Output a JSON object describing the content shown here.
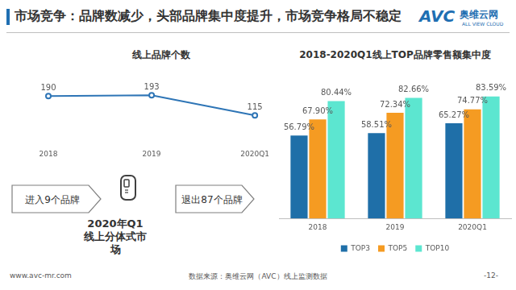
{
  "page": {
    "title": "市场竞争：品牌数减少，头部品牌集中度提升，市场竞争格局不稳定",
    "logo": {
      "mark": "AVC",
      "brand": "奥维云网",
      "tagline": "ALL VIEW CLOUD"
    },
    "flow": {
      "entered": "进入9个品牌",
      "center": "2020年Q1线上分体式市场",
      "exited": "退出87个品牌"
    },
    "footer": {
      "url": "www.avc-mr.com",
      "source": "数据来源：奥维云网（AVC）线上监测数据",
      "page": "-12-"
    }
  },
  "chart_data": [
    {
      "type": "line",
      "title": "线上品牌个数",
      "categories": [
        "2018",
        "2019",
        "2020Q1"
      ],
      "values": [
        190,
        193,
        115
      ],
      "color": "#2e75b6",
      "marker": "circle",
      "data_labels": true,
      "ylim": [
        0,
        250
      ],
      "tick_labels": "x",
      "grid": false
    },
    {
      "type": "bar",
      "title": "2018-2020Q1线上TOP品牌零售额集中度",
      "categories": [
        "2018",
        "2019",
        "2020Q1"
      ],
      "series": [
        {
          "name": "TOP3",
          "color": "#1f6fa8",
          "values": [
            56.79,
            58.51,
            65.27
          ],
          "value_labels": [
            "56.79%",
            "58.51%",
            "65.27%"
          ]
        },
        {
          "name": "TOP5",
          "color": "#f59b22",
          "values": [
            67.9,
            72.34,
            74.77
          ],
          "value_labels": [
            "67.90%",
            "72.34%",
            "74.77%"
          ]
        },
        {
          "name": "TOP10",
          "color": "#5ce6d0",
          "values": [
            80.44,
            82.66,
            83.59
          ],
          "value_labels": [
            "80.44%",
            "82.66%",
            "83.59%"
          ]
        }
      ],
      "data_labels": true,
      "legend": "bottom",
      "ylim": [
        0,
        100
      ],
      "tick_labels": "x",
      "grid": false
    }
  ]
}
